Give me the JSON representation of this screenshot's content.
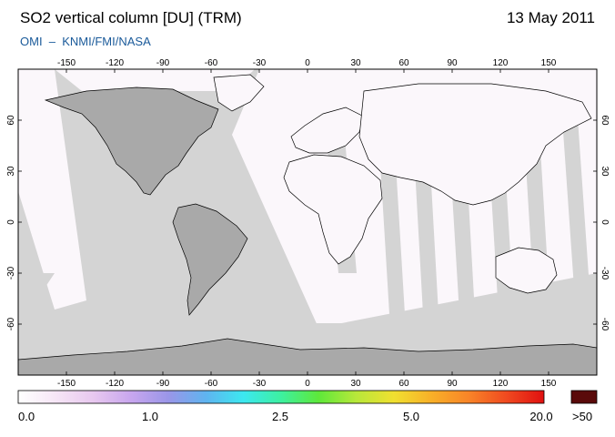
{
  "header": {
    "title": "SO2 vertical column [DU] (TRM)",
    "date": "13 May 2011",
    "source": "OMI  –  KNMI/FMI/NASA"
  },
  "map": {
    "projection": "equirectangular",
    "lon_range": [
      -180,
      180
    ],
    "lat_range": [
      -90,
      90
    ],
    "top_lon_ticks": [
      "-150",
      "-120",
      "-90",
      "-60",
      "-30",
      "0",
      "30",
      "60",
      "90",
      "120",
      "150"
    ],
    "bottom_lon_ticks": [
      "-150",
      "-120",
      "-90",
      "-60",
      "-30",
      "0",
      "30",
      "60",
      "90",
      "120",
      "150"
    ],
    "left_lat_ticks": [
      "60",
      "30",
      "0",
      "-30",
      "-60"
    ],
    "right_lat_ticks": [
      "60",
      "30",
      "0",
      "-30",
      "-60"
    ],
    "tick_lons": [
      -150,
      -120,
      -90,
      -60,
      -30,
      0,
      30,
      60,
      90,
      120,
      150
    ],
    "tick_lats": [
      60,
      30,
      0,
      -30,
      -60
    ],
    "colors": {
      "no_data_ocean": "#d4d4d4",
      "no_data_land": "#a9a9a9",
      "low_value": "#ffffff",
      "coastline": "#000000"
    }
  },
  "colorbar": {
    "labels": [
      "0.0",
      "1.0",
      "2.5",
      "5.0",
      "20.0"
    ],
    "overflow_label": ">50",
    "overflow_color": "#5a0a0a",
    "colors": [
      "#ffffff",
      "#f6e6f6",
      "#e8c8ef",
      "#c8a6ee",
      "#9a96e8",
      "#5fb4f0",
      "#3ce8f0",
      "#3df0a0",
      "#5ee83a",
      "#b8e83a",
      "#f0e030",
      "#f8b028",
      "#f88428",
      "#f04a20",
      "#e01010"
    ]
  }
}
